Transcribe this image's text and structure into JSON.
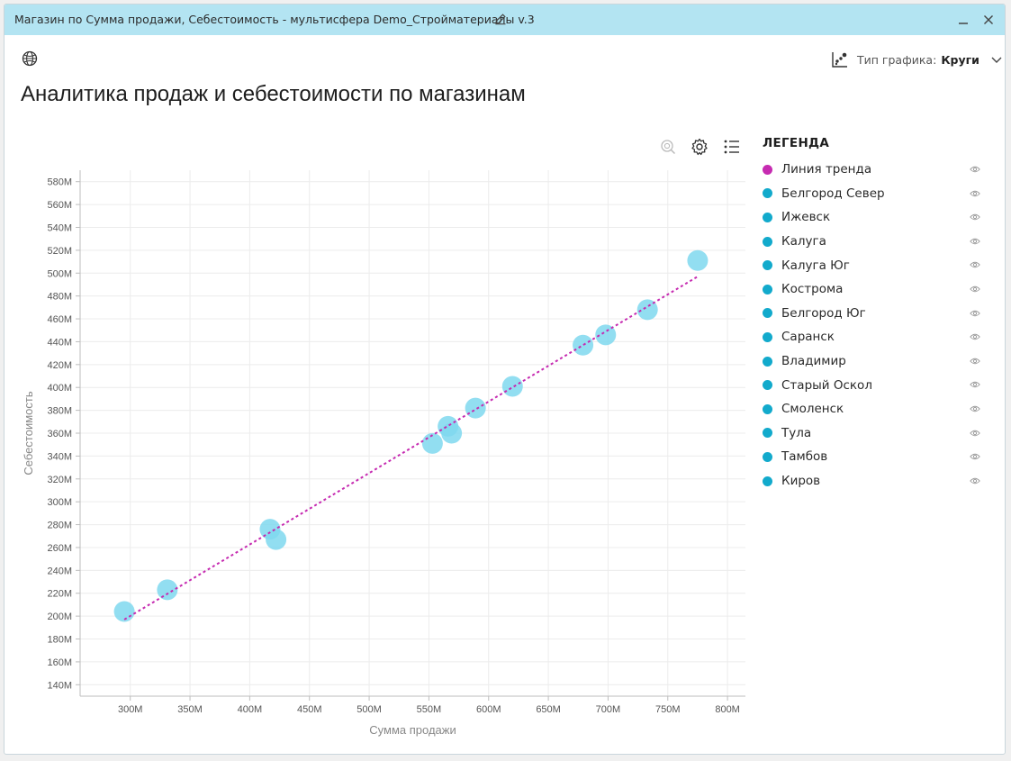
{
  "window": {
    "title": "Магазин по Сумма продажи, Себестоимость - мультисфера Demo_Стройматериалы v.3"
  },
  "toolbar": {
    "chart_type_label": "Тип графика:",
    "chart_type_value": "Круги"
  },
  "page_title": "Аналитика продаж и себестоимости по магазинам",
  "legend": {
    "title": "ЛЕГЕНДА",
    "items": [
      {
        "label": "Линия тренда",
        "color": "#c62bb1"
      },
      {
        "label": "Белгород Север",
        "color": "#12aacc"
      },
      {
        "label": "Ижевск",
        "color": "#12aacc"
      },
      {
        "label": "Калуга",
        "color": "#12aacc"
      },
      {
        "label": "Калуга Юг",
        "color": "#12aacc"
      },
      {
        "label": "Кострома",
        "color": "#12aacc"
      },
      {
        "label": "Белгород Юг",
        "color": "#12aacc"
      },
      {
        "label": "Саранск",
        "color": "#12aacc"
      },
      {
        "label": "Владимир",
        "color": "#12aacc"
      },
      {
        "label": "Старый Оскол",
        "color": "#12aacc"
      },
      {
        "label": "Смоленск",
        "color": "#12aacc"
      },
      {
        "label": "Тула",
        "color": "#12aacc"
      },
      {
        "label": "Тамбов",
        "color": "#12aacc"
      },
      {
        "label": "Киров",
        "color": "#12aacc"
      }
    ]
  },
  "chart_data": {
    "type": "scatter",
    "xlabel": "Сумма продажи",
    "ylabel": "Себестоимость",
    "xlim": [
      258,
      815
    ],
    "ylim": [
      130,
      590
    ],
    "x_ticks": [
      300,
      350,
      400,
      450,
      500,
      550,
      600,
      650,
      700,
      750,
      800
    ],
    "x_tick_labels": [
      "300M",
      "350M",
      "400M",
      "450M",
      "500M",
      "550M",
      "600M",
      "650M",
      "700M",
      "750M",
      "800M"
    ],
    "y_ticks": [
      140,
      160,
      180,
      200,
      220,
      240,
      260,
      280,
      300,
      320,
      340,
      360,
      380,
      400,
      420,
      440,
      460,
      480,
      500,
      520,
      540,
      560,
      580
    ],
    "y_tick_labels": [
      "140M",
      "160M",
      "180M",
      "200M",
      "220M",
      "240M",
      "260M",
      "280M",
      "300M",
      "320M",
      "340M",
      "360M",
      "380M",
      "400M",
      "420M",
      "440M",
      "460M",
      "480M",
      "500M",
      "520M",
      "540M",
      "560M",
      "580M"
    ],
    "grid": true,
    "legend_placement": "right",
    "point_color": "#7fd8ee",
    "trend_color": "#c62bb1",
    "points": [
      {
        "x": 295,
        "y": 204
      },
      {
        "x": 331,
        "y": 223
      },
      {
        "x": 417,
        "y": 276
      },
      {
        "x": 422,
        "y": 267
      },
      {
        "x": 553,
        "y": 351
      },
      {
        "x": 566,
        "y": 366
      },
      {
        "x": 569,
        "y": 360
      },
      {
        "x": 589,
        "y": 382
      },
      {
        "x": 620,
        "y": 401
      },
      {
        "x": 679,
        "y": 437
      },
      {
        "x": 698,
        "y": 446
      },
      {
        "x": 733,
        "y": 468
      },
      {
        "x": 775,
        "y": 511
      }
    ],
    "trend": {
      "x": [
        295,
        775
      ],
      "y": [
        197,
        497
      ]
    }
  }
}
